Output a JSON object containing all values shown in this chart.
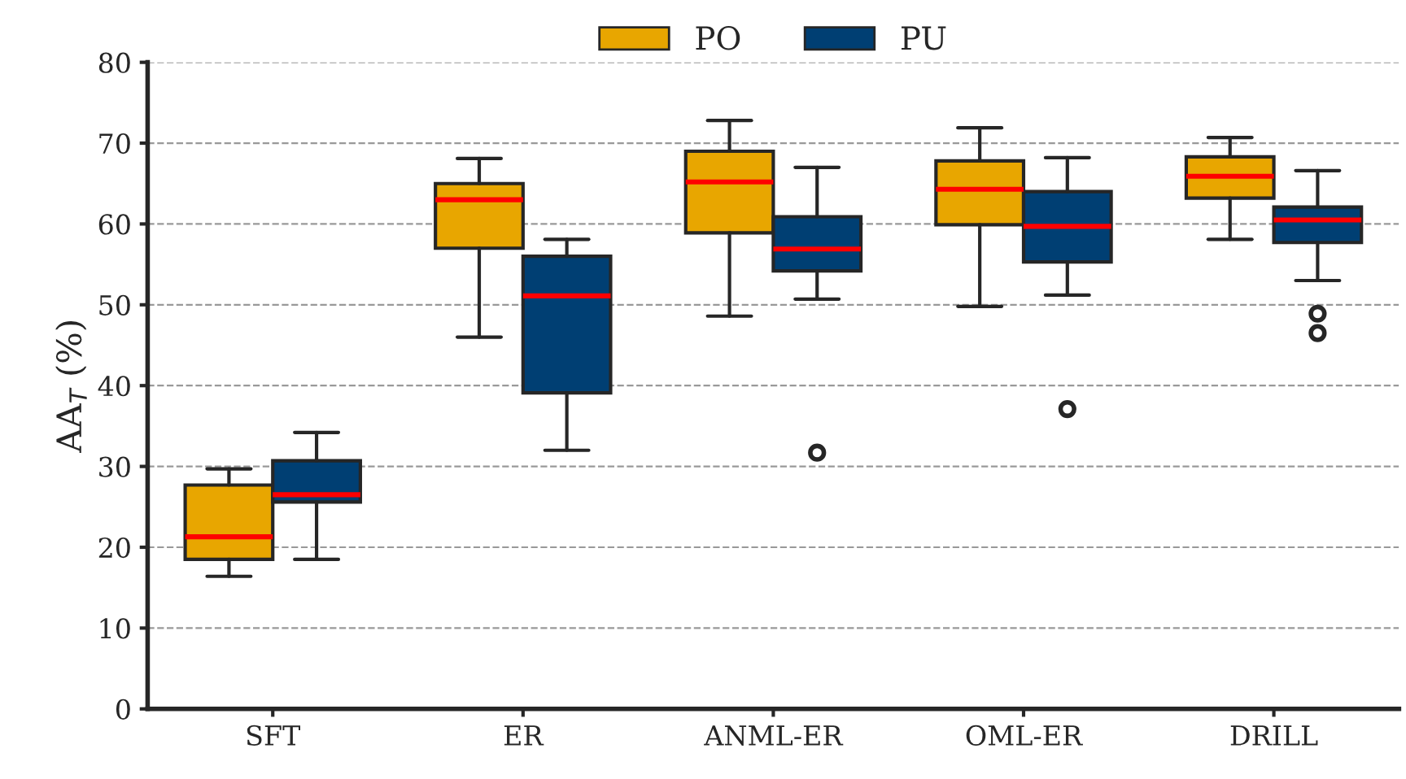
{
  "chart_data": {
    "type": "box",
    "ylabel": "AA$_{T}$ (%)",
    "categories": [
      "SFT",
      "ER",
      "ANML-ER",
      "OML-ER",
      "DRILL"
    ],
    "series": [
      {
        "name": "PO",
        "color": "#e8a600",
        "boxes": [
          {
            "low": 16.4,
            "q1": 18.5,
            "median": 21.3,
            "q3": 27.7,
            "high": 29.7
          },
          {
            "low": 46.0,
            "q1": 57.0,
            "median": 63.0,
            "q3": 65.0,
            "high": 68.1
          },
          {
            "low": 48.6,
            "q1": 58.9,
            "median": 65.2,
            "q3": 69.0,
            "high": 72.8
          },
          {
            "low": 49.8,
            "q1": 59.9,
            "median": 64.3,
            "q3": 67.8,
            "high": 71.9
          },
          {
            "low": 58.1,
            "q1": 63.2,
            "median": 65.9,
            "q3": 68.3,
            "high": 70.7
          }
        ]
      },
      {
        "name": "PU",
        "color": "#003f73",
        "boxes": [
          {
            "low": 18.5,
            "q1": 25.6,
            "median": 26.5,
            "q3": 30.7,
            "high": 34.2
          },
          {
            "low": 32.0,
            "q1": 39.1,
            "median": 51.1,
            "q3": 56.0,
            "high": 58.1
          },
          {
            "low": 50.7,
            "q1": 54.2,
            "median": 56.9,
            "q3": 60.9,
            "high": 67.0,
            "outliers": [
              31.7
            ]
          },
          {
            "low": 51.2,
            "q1": 55.3,
            "median": 59.7,
            "q3": 64.0,
            "high": 68.2,
            "outliers": [
              37.1
            ]
          },
          {
            "low": 53.0,
            "q1": 57.7,
            "median": 60.5,
            "q3": 62.1,
            "high": 66.6,
            "outliers": [
              48.9,
              46.5
            ]
          }
        ]
      }
    ],
    "ylim": [
      0,
      80
    ],
    "yticks": [
      0,
      10,
      20,
      30,
      40,
      50,
      60,
      70,
      80
    ],
    "grid": "y",
    "legend": "top"
  }
}
